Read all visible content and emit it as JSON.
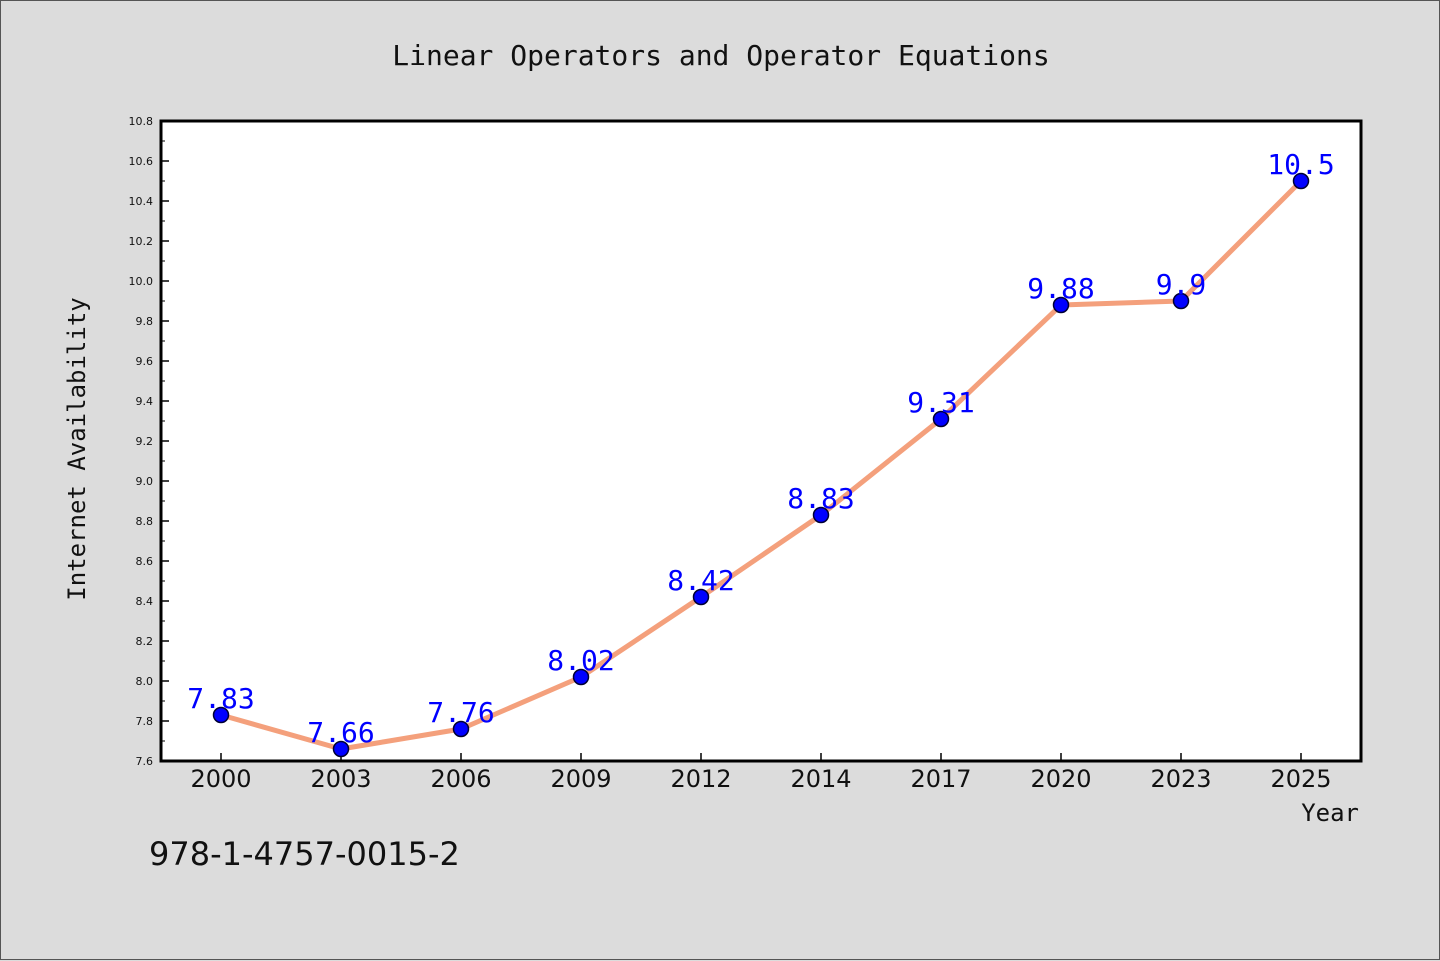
{
  "chart_data": {
    "type": "line",
    "title": "Linear Operators and Operator Equations",
    "xlabel": "Year",
    "ylabel": "Internet Availability",
    "categories": [
      "2000",
      "2003",
      "2006",
      "2009",
      "2012",
      "2014",
      "2017",
      "2020",
      "2023",
      "2025"
    ],
    "values": [
      7.83,
      7.66,
      7.76,
      8.02,
      8.42,
      8.83,
      9.31,
      9.88,
      9.9,
      10.5
    ],
    "data_labels": [
      "7.83",
      "7.66",
      "7.76",
      "8.02",
      "8.42",
      "8.83",
      "9.31",
      "9.88",
      "9.9",
      "10.5"
    ],
    "ylim": [
      7.6,
      10.8
    ],
    "y_ticks": [
      "7.6",
      "7.8",
      "8.0",
      "8.2",
      "8.4",
      "8.6",
      "8.8",
      "9.0",
      "9.2",
      "9.4",
      "9.6",
      "9.8",
      "10.0",
      "10.2",
      "10.4",
      "10.6",
      "10.8"
    ],
    "grid": false,
    "legend": "none",
    "colors": {
      "line": "#f4a07c",
      "marker": "#0000ff",
      "marker_edge": "#000033",
      "data_label": "#0000ff",
      "background": "#dcdcdc",
      "plot_background": "#ffffff"
    }
  },
  "footer": {
    "isbn": "978-1-4757-0015-2"
  }
}
